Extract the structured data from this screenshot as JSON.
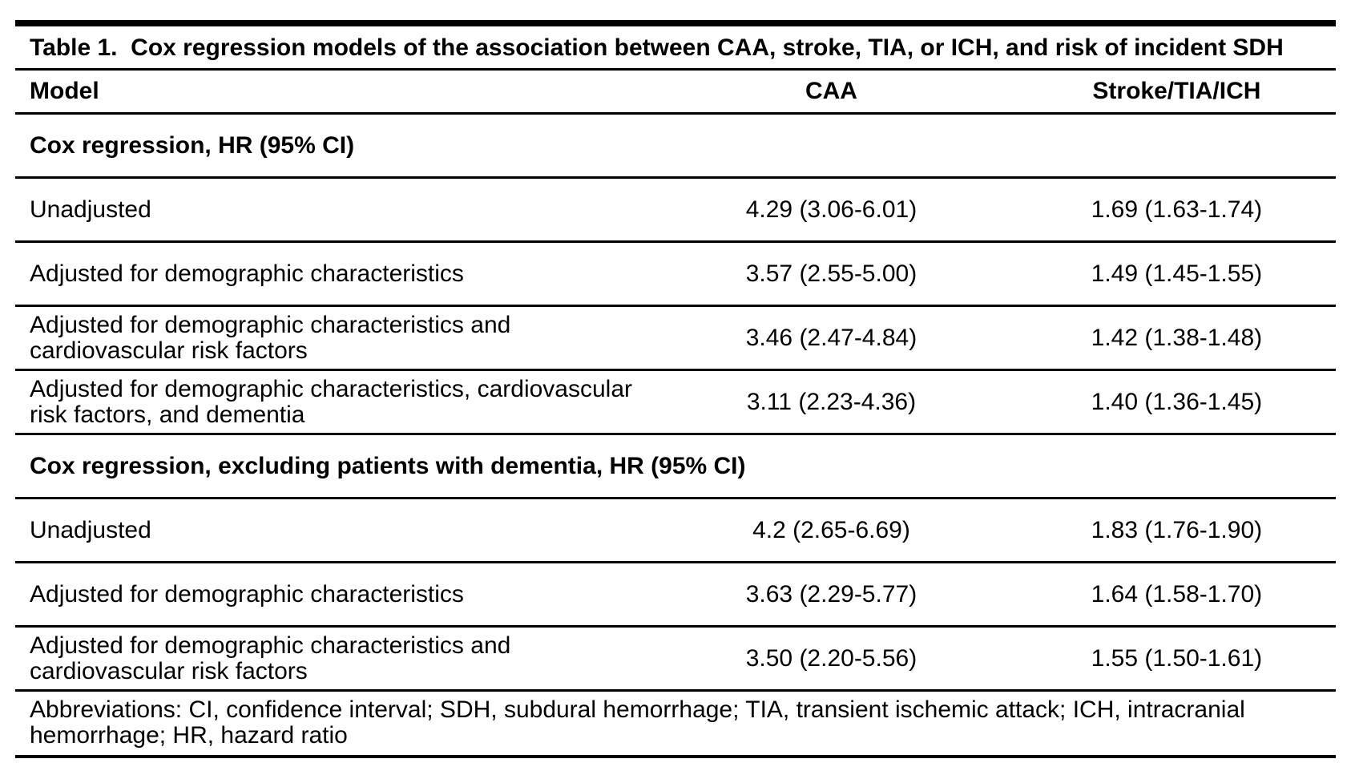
{
  "table": {
    "title": "Table 1.  Cox regression models of the association between CAA, stroke, TIA, or ICH, and risk of incident SDH",
    "columns": [
      "Model",
      "CAA",
      "Stroke/TIA/ICH"
    ],
    "sections": [
      {
        "heading": "Cox regression, HR (95% CI)",
        "rows": [
          {
            "model": "Unadjusted",
            "caa": "4.29 (3.06-6.01)",
            "stroke_tia_ich": "1.69 (1.63-1.74)"
          },
          {
            "model": "Adjusted for demographic characteristics",
            "caa": "3.57 (2.55-5.00)",
            "stroke_tia_ich": "1.49 (1.45-1.55)"
          },
          {
            "model": "Adjusted for demographic characteristics and cardiovascular risk factors",
            "caa": "3.46 (2.47-4.84)",
            "stroke_tia_ich": "1.42 (1.38-1.48)"
          },
          {
            "model": "Adjusted for demographic characteristics, cardiovascular risk factors, and dementia",
            "caa": "3.11 (2.23-4.36)",
            "stroke_tia_ich": "1.40 (1.36-1.45)"
          }
        ]
      },
      {
        "heading": "Cox regression, excluding patients with dementia, HR (95% CI)",
        "rows": [
          {
            "model": "Unadjusted",
            "caa": "4.2 (2.65-6.69)",
            "stroke_tia_ich": "1.83 (1.76-1.90)"
          },
          {
            "model": "Adjusted for demographic characteristics",
            "caa": "3.63 (2.29-5.77)",
            "stroke_tia_ich": "1.64 (1.58-1.70)"
          },
          {
            "model": "Adjusted for demographic characteristics and cardiovascular risk factors",
            "caa": "3.50 (2.20-5.56)",
            "stroke_tia_ich": "1.55 (1.50-1.61)"
          }
        ]
      }
    ],
    "footnote": "Abbreviations: CI, confidence interval; SDH, subdural hemorrhage; TIA, transient ischemic attack; ICH, intracranial hemorrhage; HR, hazard ratio",
    "colors": {
      "text": "#000000",
      "background": "#ffffff",
      "rule": "#000000"
    }
  }
}
